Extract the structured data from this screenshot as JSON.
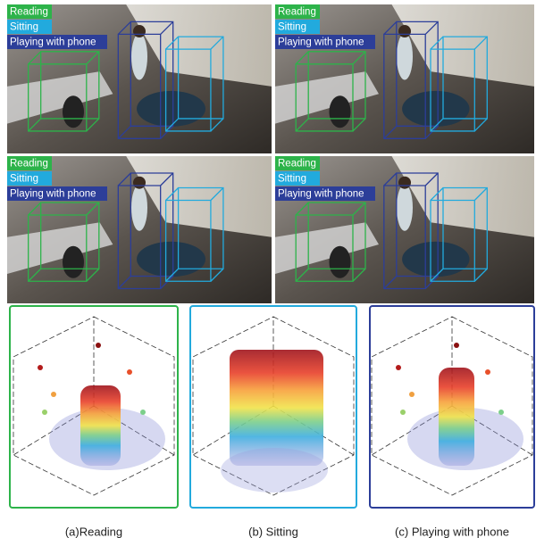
{
  "photos": [
    {
      "labels": [
        "Reading",
        "Sitting",
        "Playing with phone"
      ]
    },
    {
      "labels": [
        "Reading",
        "Sitting",
        "Playing with phone"
      ]
    },
    {
      "labels": [
        "Reading",
        "Sitting",
        "Playing with phone"
      ]
    },
    {
      "labels": [
        "Reading",
        "Sitting",
        "Playing with phone"
      ]
    }
  ],
  "panels": [
    {
      "caption": "(a)Reading"
    },
    {
      "caption": "(b) Sitting"
    },
    {
      "caption": "(c) Playing with phone"
    }
  ]
}
